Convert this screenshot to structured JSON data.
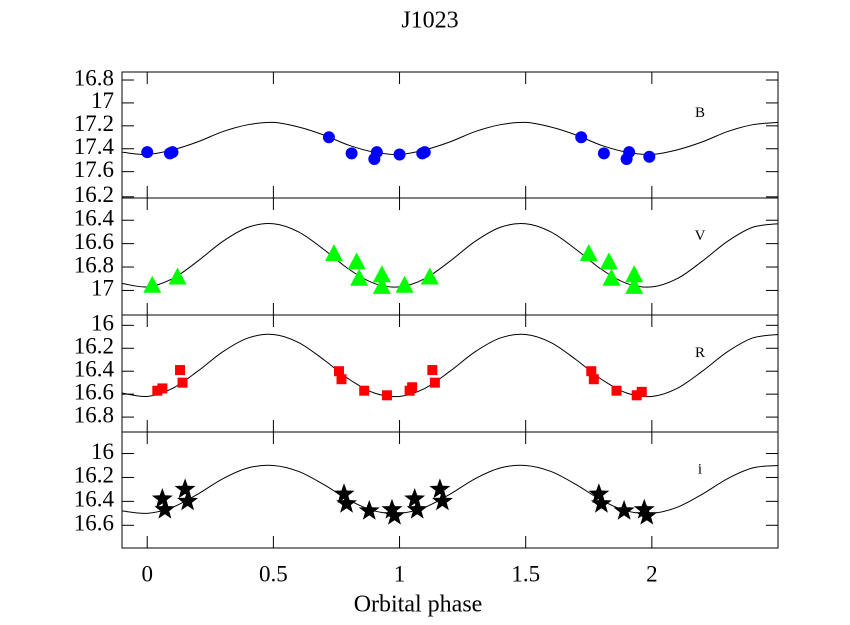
{
  "chart_data": [
    {
      "type": "scatter",
      "title": "J1023",
      "label": "B",
      "marker": "circle",
      "color": "#0000ff",
      "x": [
        0.0,
        0.09,
        0.1,
        0.72,
        0.81,
        0.9,
        0.91,
        1.0,
        1.09,
        1.1,
        1.72,
        1.81,
        1.9,
        1.91,
        1.99
      ],
      "values": [
        17.43,
        17.44,
        17.43,
        17.3,
        17.44,
        17.49,
        17.43,
        17.45,
        17.44,
        17.43,
        17.3,
        17.44,
        17.49,
        17.43,
        17.47
      ],
      "model_x": [
        -0.1,
        0,
        0.1,
        0.2,
        0.3,
        0.4,
        0.5,
        0.6,
        0.7,
        0.8,
        0.9,
        1.0,
        1.1,
        1.2,
        1.3,
        1.4,
        1.5,
        1.6,
        1.7,
        1.8,
        1.9,
        2.0,
        2.1,
        2.2,
        2.3,
        2.4,
        2.5
      ],
      "model": [
        17.43,
        17.45,
        17.41,
        17.34,
        17.25,
        17.19,
        17.17,
        17.21,
        17.28,
        17.37,
        17.43,
        17.45,
        17.41,
        17.34,
        17.25,
        17.19,
        17.17,
        17.21,
        17.28,
        17.37,
        17.43,
        17.45,
        17.41,
        17.34,
        17.25,
        17.19,
        17.17
      ],
      "xlim": [
        -0.1,
        2.5
      ],
      "xticks": [
        0,
        0.5,
        1,
        1.5,
        2
      ],
      "ylim": [
        17.83,
        16.73
      ],
      "yticks": [
        16.8,
        17,
        17.2,
        17.4,
        17.6
      ]
    },
    {
      "type": "scatter",
      "label": "V",
      "marker": "triangle",
      "color": "#00ff00",
      "x": [
        0.02,
        0.12,
        0.74,
        0.83,
        0.84,
        0.93,
        0.93,
        1.02,
        1.12,
        1.75,
        1.83,
        1.84,
        1.93,
        1.93
      ],
      "values": [
        16.96,
        16.89,
        16.69,
        16.76,
        16.9,
        16.87,
        16.97,
        16.96,
        16.89,
        16.69,
        16.76,
        16.9,
        16.87,
        16.97
      ],
      "model_x": [
        -0.1,
        0,
        0.1,
        0.2,
        0.3,
        0.4,
        0.5,
        0.6,
        0.7,
        0.8,
        0.9,
        1.0,
        1.1,
        1.2,
        1.3,
        1.4,
        1.5,
        1.6,
        1.7,
        1.8,
        1.9,
        2.0,
        2.1,
        2.2,
        2.3,
        2.4,
        2.5
      ],
      "model": [
        16.94,
        16.97,
        16.9,
        16.75,
        16.58,
        16.46,
        16.43,
        16.5,
        16.65,
        16.82,
        16.94,
        16.97,
        16.9,
        16.75,
        16.58,
        16.46,
        16.43,
        16.5,
        16.65,
        16.82,
        16.94,
        16.97,
        16.9,
        16.75,
        16.58,
        16.46,
        16.43
      ],
      "xlim": [
        -0.1,
        2.5
      ],
      "xticks": [
        0,
        0.5,
        1,
        1.5,
        2
      ],
      "ylim": [
        17.21,
        16.21
      ],
      "yticks": [
        16.2,
        16.4,
        16.6,
        16.8,
        17
      ]
    },
    {
      "type": "scatter",
      "label": "R",
      "marker": "square",
      "color": "#ff0000",
      "x": [
        0.04,
        0.06,
        0.13,
        0.14,
        0.76,
        0.77,
        0.86,
        0.95,
        1.04,
        1.05,
        1.13,
        1.14,
        1.76,
        1.77,
        1.86,
        1.94,
        1.96
      ],
      "values": [
        16.57,
        16.55,
        16.39,
        16.5,
        16.4,
        16.47,
        16.57,
        16.61,
        16.57,
        16.54,
        16.39,
        16.5,
        16.4,
        16.47,
        16.57,
        16.61,
        16.58
      ],
      "model_x": [
        -0.1,
        0,
        0.1,
        0.2,
        0.3,
        0.4,
        0.5,
        0.6,
        0.7,
        0.8,
        0.9,
        1.0,
        1.1,
        1.2,
        1.3,
        1.4,
        1.5,
        1.6,
        1.7,
        1.8,
        1.9,
        2.0,
        2.1,
        2.2,
        2.3,
        2.4,
        2.5
      ],
      "model": [
        16.59,
        16.62,
        16.55,
        16.4,
        16.23,
        16.11,
        16.08,
        16.15,
        16.3,
        16.47,
        16.59,
        16.62,
        16.55,
        16.4,
        16.23,
        16.11,
        16.08,
        16.15,
        16.3,
        16.47,
        16.59,
        16.62,
        16.55,
        16.4,
        16.23,
        16.11,
        16.08
      ],
      "xlim": [
        -0.1,
        2.5
      ],
      "xticks": [
        0,
        0.5,
        1,
        1.5,
        2
      ],
      "ylim": [
        16.93,
        15.91
      ],
      "yticks": [
        16,
        16.2,
        16.4,
        16.6,
        16.8
      ]
    },
    {
      "type": "scatter",
      "label": "i",
      "marker": "star",
      "color": "#000000",
      "x_label": "Orbital phase",
      "x": [
        0.06,
        0.07,
        0.15,
        0.16,
        0.78,
        0.79,
        0.88,
        0.97,
        0.98,
        1.06,
        1.07,
        1.16,
        1.17,
        1.79,
        1.8,
        1.89,
        1.97,
        1.98
      ],
      "values": [
        16.38,
        16.47,
        16.3,
        16.4,
        16.34,
        16.42,
        16.48,
        16.47,
        16.52,
        16.38,
        16.47,
        16.3,
        16.4,
        16.34,
        16.42,
        16.48,
        16.47,
        16.52
      ],
      "model_x": [
        -0.1,
        0,
        0.1,
        0.2,
        0.3,
        0.4,
        0.5,
        0.6,
        0.7,
        0.8,
        0.9,
        1.0,
        1.1,
        1.2,
        1.3,
        1.4,
        1.5,
        1.6,
        1.7,
        1.8,
        1.9,
        2.0,
        2.1,
        2.2,
        2.3,
        2.4,
        2.5
      ],
      "model": [
        16.48,
        16.5,
        16.45,
        16.34,
        16.21,
        16.12,
        16.1,
        16.15,
        16.26,
        16.39,
        16.48,
        16.5,
        16.45,
        16.34,
        16.21,
        16.12,
        16.1,
        16.15,
        16.26,
        16.39,
        16.48,
        16.5,
        16.45,
        16.34,
        16.21,
        16.12,
        16.1
      ],
      "xlim": [
        -0.1,
        2.5
      ],
      "xticks": [
        0,
        0.5,
        1,
        1.5,
        2
      ],
      "ylim": [
        16.79,
        15.82
      ],
      "yticks": [
        16,
        16.2,
        16.4,
        16.6
      ]
    }
  ]
}
